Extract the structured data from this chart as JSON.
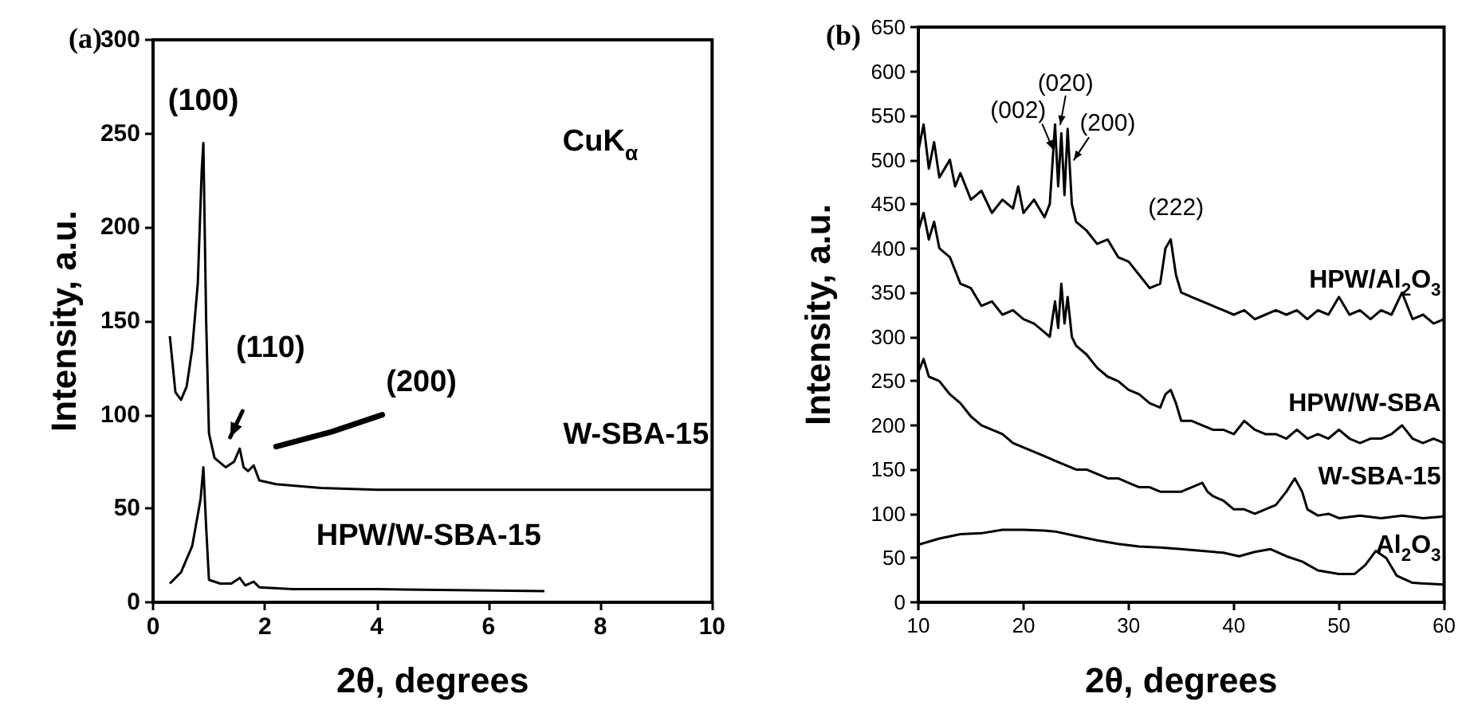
{
  "chart_data": [
    {
      "type": "line",
      "title": "(a)",
      "xlabel": "2θ, degrees",
      "ylabel": "Intensity, a.u.",
      "xlim": [
        0,
        10
      ],
      "ylim": [
        0,
        300
      ],
      "xticks": [
        0,
        2,
        4,
        6,
        8,
        10
      ],
      "yticks": [
        0,
        50,
        100,
        150,
        200,
        250,
        300
      ],
      "series": [
        {
          "name": "W-SBA-15",
          "color": "#000000",
          "x": [
            0.3,
            0.4,
            0.5,
            0.6,
            0.7,
            0.8,
            0.87,
            0.9,
            0.95,
            1.0,
            1.1,
            1.3,
            1.45,
            1.55,
            1.62,
            1.7,
            1.8,
            1.9,
            2.2,
            3,
            4,
            6,
            10
          ],
          "values": [
            142,
            112,
            108,
            115,
            135,
            170,
            230,
            245,
            150,
            90,
            77,
            72,
            75,
            82,
            72,
            70,
            73,
            65,
            63,
            61,
            60,
            60,
            60
          ]
        },
        {
          "name": "HPW/W-SBA-15",
          "color": "#000000",
          "x": [
            0.3,
            0.5,
            0.7,
            0.85,
            0.9,
            0.95,
            1.0,
            1.2,
            1.4,
            1.55,
            1.65,
            1.8,
            1.9,
            2.5,
            4,
            7
          ],
          "values": [
            10,
            16,
            30,
            55,
            72,
            40,
            12,
            10,
            10,
            13,
            9,
            11,
            8,
            7,
            7,
            6
          ]
        }
      ],
      "annotations": [
        "(100)",
        "(110)",
        "(200)",
        "CuK$_{α}$"
      ]
    },
    {
      "type": "line",
      "title": "(b)",
      "xlabel": "2θ, degrees",
      "ylabel": "Intensity, a.u.",
      "xlim": [
        10,
        60
      ],
      "ylim": [
        0,
        650
      ],
      "xticks": [
        10,
        20,
        30,
        40,
        50,
        60
      ],
      "yticks": [
        0,
        50,
        100,
        150,
        200,
        250,
        300,
        350,
        400,
        450,
        500,
        550,
        600,
        650
      ],
      "series": [
        {
          "name": "HPW/Al$_{2}$O$_{3}$",
          "color": "#000000",
          "x": [
            10,
            10.5,
            11,
            11.5,
            12,
            13,
            13.5,
            14,
            15,
            16,
            17,
            18,
            19,
            19.5,
            20,
            21,
            22,
            22.5,
            23,
            23.3,
            23.6,
            23.9,
            24.2,
            24.6,
            25,
            26,
            27,
            28,
            29,
            30,
            31,
            32,
            33,
            33.5,
            34,
            34.5,
            35,
            36,
            37,
            38,
            39,
            40,
            41,
            42,
            43,
            44,
            45,
            46,
            47,
            48,
            49,
            50,
            51,
            52,
            53,
            54,
            55,
            56,
            57,
            58,
            59,
            60
          ],
          "values": [
            510,
            540,
            490,
            520,
            480,
            500,
            470,
            485,
            455,
            465,
            440,
            455,
            445,
            470,
            440,
            455,
            435,
            450,
            540,
            470,
            530,
            460,
            535,
            450,
            430,
            420,
            405,
            410,
            390,
            385,
            370,
            355,
            360,
            400,
            410,
            370,
            350,
            345,
            340,
            335,
            330,
            325,
            330,
            320,
            325,
            330,
            325,
            330,
            320,
            330,
            325,
            345,
            325,
            330,
            320,
            330,
            325,
            350,
            320,
            325,
            315,
            320
          ]
        },
        {
          "name": "HPW/W-SBA",
          "color": "#000000",
          "x": [
            10,
            10.5,
            11,
            11.5,
            12,
            13,
            14,
            15,
            16,
            17,
            18,
            19,
            20,
            21,
            22,
            22.5,
            23,
            23.3,
            23.6,
            23.9,
            24.2,
            24.6,
            25,
            26,
            27,
            28,
            29,
            30,
            31,
            32,
            33,
            33.5,
            34,
            34.5,
            35,
            36,
            37,
            38,
            39,
            40,
            41,
            42,
            43,
            44,
            45,
            46,
            47,
            48,
            49,
            50,
            51,
            52,
            53,
            54,
            55,
            56,
            57,
            58,
            59,
            60
          ],
          "values": [
            420,
            440,
            410,
            430,
            400,
            390,
            360,
            355,
            335,
            340,
            325,
            330,
            320,
            315,
            305,
            300,
            340,
            310,
            360,
            315,
            345,
            300,
            290,
            280,
            265,
            255,
            250,
            240,
            235,
            225,
            220,
            235,
            240,
            225,
            205,
            205,
            200,
            195,
            195,
            190,
            205,
            195,
            190,
            190,
            185,
            195,
            185,
            190,
            185,
            195,
            185,
            180,
            185,
            185,
            190,
            200,
            185,
            180,
            185,
            180
          ]
        },
        {
          "name": "W-SBA-15",
          "color": "#000000",
          "x": [
            10,
            10.5,
            11,
            12,
            13,
            14,
            15,
            16,
            17,
            18,
            19,
            20,
            21,
            22,
            23,
            24,
            25,
            26,
            27,
            28,
            29,
            30,
            31,
            32,
            33,
            34,
            35,
            36,
            37,
            37.5,
            38,
            39,
            40,
            41,
            42,
            43,
            44,
            45,
            45.8,
            46.5,
            47,
            48,
            49,
            50,
            52,
            54,
            56,
            58,
            60
          ],
          "values": [
            260,
            275,
            255,
            250,
            235,
            225,
            210,
            200,
            195,
            190,
            180,
            175,
            170,
            165,
            160,
            155,
            150,
            150,
            145,
            140,
            140,
            135,
            130,
            130,
            125,
            125,
            125,
            130,
            135,
            125,
            120,
            115,
            105,
            105,
            100,
            105,
            110,
            125,
            140,
            125,
            105,
            98,
            100,
            95,
            98,
            95,
            98,
            95,
            97
          ]
        },
        {
          "name": "Al$_{2}$O$_{3}$",
          "color": "#000000",
          "x": [
            10,
            12,
            14,
            16,
            18,
            20,
            22,
            23,
            25,
            27,
            29,
            31,
            33,
            35,
            37,
            39,
            40.5,
            42,
            43.5,
            45,
            46.5,
            48,
            50,
            51.5,
            52.5,
            53.5,
            54.5,
            55.5,
            57,
            60
          ],
          "values": [
            65,
            72,
            77,
            78,
            82,
            82,
            81,
            80,
            75,
            70,
            66,
            63,
            62,
            60,
            58,
            56,
            52,
            57,
            60,
            52,
            46,
            36,
            32,
            32,
            42,
            58,
            50,
            30,
            22,
            20
          ]
        }
      ],
      "annotations": [
        "(002)",
        "(020)",
        "(200)",
        "(222)"
      ]
    }
  ]
}
